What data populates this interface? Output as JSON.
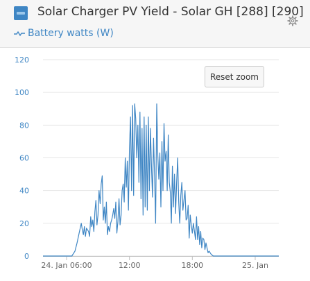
{
  "header": {
    "title": "Solar Charger PV Yield - Solar GH [288] [290]",
    "icon": "solar-panel-icon",
    "settings_icon": "gear-icon"
  },
  "legend": {
    "icon": "line-series-icon",
    "label": "Battery watts (W)",
    "color": "#3f86c4"
  },
  "reset_button": {
    "label": "Reset zoom"
  },
  "chart_data": {
    "type": "line",
    "x_unit": "hours",
    "y_unit": "W",
    "xlim": [
      3.75,
      26.25
    ],
    "ylim": [
      0,
      120
    ],
    "y_ticks": [
      0,
      20,
      40,
      60,
      80,
      100,
      120
    ],
    "x_ticks": [
      {
        "value": 6,
        "label": "24. Jan 06:00"
      },
      {
        "value": 12,
        "label": "12:00"
      },
      {
        "value": 18,
        "label": "18:00"
      },
      {
        "value": 24,
        "label": "25. Jan"
      }
    ],
    "grid": true,
    "series": [
      {
        "name": "Battery watts (W)",
        "color": "#3f86c4",
        "x": [
          3.75,
          6.5,
          6.8,
          7.0,
          7.2,
          7.4,
          7.5,
          7.6,
          7.7,
          7.8,
          7.9,
          8.0,
          8.1,
          8.2,
          8.3,
          8.4,
          8.5,
          8.6,
          8.7,
          8.8,
          8.9,
          9.0,
          9.1,
          9.2,
          9.3,
          9.4,
          9.5,
          9.6,
          9.7,
          9.8,
          9.9,
          10.0,
          10.1,
          10.2,
          10.3,
          10.4,
          10.5,
          10.6,
          10.7,
          10.8,
          10.9,
          11.0,
          11.1,
          11.2,
          11.3,
          11.4,
          11.5,
          11.6,
          11.7,
          11.8,
          11.9,
          12.0,
          12.1,
          12.2,
          12.3,
          12.4,
          12.5,
          12.6,
          12.7,
          12.8,
          12.9,
          13.0,
          13.1,
          13.2,
          13.3,
          13.4,
          13.5,
          13.6,
          13.7,
          13.8,
          13.9,
          14.0,
          14.1,
          14.2,
          14.3,
          14.4,
          14.5,
          14.6,
          14.7,
          14.8,
          14.9,
          15.0,
          15.1,
          15.2,
          15.3,
          15.4,
          15.5,
          15.6,
          15.7,
          15.8,
          15.9,
          16.0,
          16.1,
          16.2,
          16.3,
          16.4,
          16.5,
          16.6,
          16.7,
          16.8,
          16.9,
          17.0,
          17.1,
          17.2,
          17.3,
          17.4,
          17.5,
          17.6,
          17.7,
          17.8,
          17.9,
          18.0,
          18.1,
          18.2,
          18.3,
          18.4,
          18.5,
          18.6,
          18.7,
          18.8,
          18.9,
          19.0,
          19.1,
          19.2,
          19.3,
          19.4,
          19.5,
          19.6,
          19.8,
          20.0,
          20.3,
          20.6,
          26.25
        ],
        "y": [
          0,
          0,
          3,
          8,
          14,
          20,
          16,
          13,
          18,
          12,
          17,
          16,
          15,
          12,
          24,
          18,
          22,
          15,
          27,
          34,
          19,
          25,
          40,
          32,
          44,
          49,
          22,
          30,
          20,
          33,
          13,
          18,
          15,
          20,
          22,
          25,
          29,
          23,
          33,
          14,
          21,
          35,
          19,
          25,
          40,
          44,
          33,
          60,
          42,
          58,
          28,
          66,
          85,
          40,
          92,
          37,
          93,
          84,
          60,
          80,
          45,
          88,
          35,
          78,
          25,
          85,
          30,
          80,
          28,
          85,
          40,
          78,
          55,
          36,
          72,
          49,
          20,
          93,
          62,
          47,
          63,
          30,
          70,
          40,
          81,
          58,
          64,
          40,
          74,
          45,
          39,
          20,
          55,
          30,
          50,
          26,
          45,
          60,
          33,
          20,
          37,
          45,
          28,
          34,
          40,
          22,
          23,
          31,
          11,
          25,
          19,
          14,
          20,
          15,
          10,
          24,
          10,
          18,
          7,
          15,
          5,
          11,
          10,
          4,
          8,
          5,
          2,
          3,
          1,
          0,
          0,
          0,
          0
        ]
      }
    ]
  }
}
